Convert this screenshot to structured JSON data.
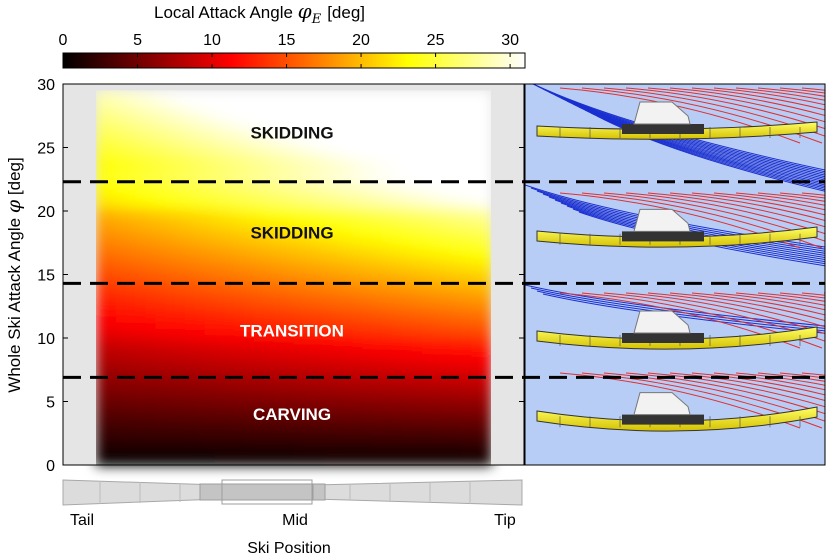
{
  "chart_data": {
    "type": "heatmap",
    "colorbar": {
      "title": "Local Attack Angle",
      "symbol": "φ",
      "subscript": "E",
      "unit": "[deg]",
      "ticks": [
        0,
        5,
        10,
        15,
        20,
        25,
        30
      ],
      "range": [
        0,
        31
      ],
      "colormap": "hot"
    },
    "ylabel": "Whole Ski Attack Angle φ [deg]",
    "ylabel_parts": {
      "text": "Whole Ski Attack Angle",
      "symbol": "φ",
      "unit": "[deg]"
    },
    "yticks": [
      0,
      5,
      10,
      15,
      20,
      25,
      30
    ],
    "ylim": [
      0,
      30
    ],
    "xlabel": "Ski Position",
    "xticks": [
      "Tail",
      "Mid",
      "Tip"
    ],
    "boundaries": [
      6.9,
      14.3,
      22.3
    ],
    "regions": [
      {
        "label": "CARVING",
        "y": 4.0,
        "text_color": "#ffffff"
      },
      {
        "label": "TRANSITION",
        "y": 10.6,
        "text_color": "#ffffff"
      },
      {
        "label": "SKIDDING",
        "y": 18.3,
        "text_color": "#111111"
      },
      {
        "label": "SKIDDING",
        "y": 26.2,
        "text_color": "#111111"
      }
    ],
    "field_description": "local attack angle increases with whole ski attack angle and from tail toward tip"
  }
}
